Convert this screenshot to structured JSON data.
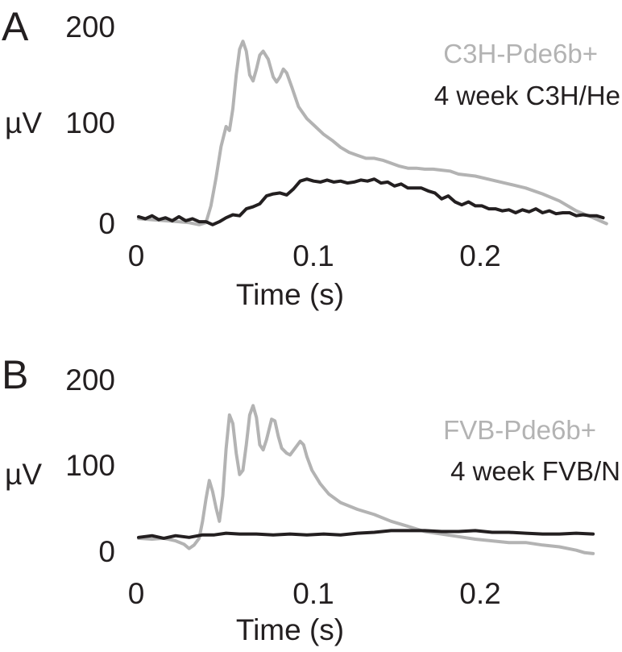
{
  "chart_data": [
    {
      "type": "line",
      "panel_label": "A",
      "ylabel": "µV",
      "xlabel": "Time (s)",
      "x_ticks": [
        "0",
        "0.1",
        "0.2"
      ],
      "y_ticks": [
        "0",
        "100",
        "200"
      ],
      "xlim": [
        0,
        0.28
      ],
      "ylim": [
        0,
        200
      ],
      "legend_position": "top-right",
      "grid": false,
      "series": [
        {
          "name": "C3H-Pde6b+",
          "color": "#b3b3b3",
          "points": [
            [
              0.0,
              7
            ],
            [
              0.008,
              6
            ],
            [
              0.016,
              5
            ],
            [
              0.024,
              4
            ],
            [
              0.03,
              3
            ],
            [
              0.036,
              1
            ],
            [
              0.04,
              3
            ],
            [
              0.043,
              20
            ],
            [
              0.046,
              48
            ],
            [
              0.049,
              80
            ],
            [
              0.052,
              100
            ],
            [
              0.054,
              96
            ],
            [
              0.056,
              118
            ],
            [
              0.058,
              152
            ],
            [
              0.06,
              178
            ],
            [
              0.062,
              186
            ],
            [
              0.064,
              176
            ],
            [
              0.066,
              152
            ],
            [
              0.068,
              146
            ],
            [
              0.07,
              158
            ],
            [
              0.072,
              172
            ],
            [
              0.074,
              176
            ],
            [
              0.077,
              168
            ],
            [
              0.08,
              150
            ],
            [
              0.082,
              145
            ],
            [
              0.084,
              150
            ],
            [
              0.086,
              158
            ],
            [
              0.088,
              154
            ],
            [
              0.091,
              140
            ],
            [
              0.095,
              120
            ],
            [
              0.1,
              108
            ],
            [
              0.105,
              100
            ],
            [
              0.11,
              92
            ],
            [
              0.115,
              86
            ],
            [
              0.12,
              79
            ],
            [
              0.125,
              74
            ],
            [
              0.13,
              71
            ],
            [
              0.135,
              68
            ],
            [
              0.14,
              68
            ],
            [
              0.145,
              66
            ],
            [
              0.15,
              63
            ],
            [
              0.155,
              60
            ],
            [
              0.16,
              58
            ],
            [
              0.165,
              58
            ],
            [
              0.17,
              57
            ],
            [
              0.175,
              57
            ],
            [
              0.18,
              56
            ],
            [
              0.185,
              55
            ],
            [
              0.19,
              52
            ],
            [
              0.2,
              50
            ],
            [
              0.21,
              46
            ],
            [
              0.22,
              42
            ],
            [
              0.23,
              38
            ],
            [
              0.24,
              32
            ],
            [
              0.25,
              25
            ],
            [
              0.26,
              15
            ],
            [
              0.27,
              8
            ],
            [
              0.278,
              2
            ]
          ]
        },
        {
          "name": "4 week C3H/He",
          "color": "#231f20",
          "points": [
            [
              0.0,
              9
            ],
            [
              0.004,
              7
            ],
            [
              0.008,
              10
            ],
            [
              0.012,
              6
            ],
            [
              0.016,
              8
            ],
            [
              0.02,
              5
            ],
            [
              0.024,
              9
            ],
            [
              0.028,
              5
            ],
            [
              0.032,
              7
            ],
            [
              0.036,
              4
            ],
            [
              0.04,
              4
            ],
            [
              0.044,
              1
            ],
            [
              0.048,
              4
            ],
            [
              0.052,
              8
            ],
            [
              0.056,
              11
            ],
            [
              0.06,
              10
            ],
            [
              0.064,
              17
            ],
            [
              0.068,
              19
            ],
            [
              0.072,
              22
            ],
            [
              0.076,
              30
            ],
            [
              0.08,
              32
            ],
            [
              0.084,
              33
            ],
            [
              0.088,
              31
            ],
            [
              0.092,
              37
            ],
            [
              0.096,
              45
            ],
            [
              0.1,
              47
            ],
            [
              0.104,
              45
            ],
            [
              0.108,
              44
            ],
            [
              0.112,
              46
            ],
            [
              0.116,
              44
            ],
            [
              0.12,
              45
            ],
            [
              0.124,
              43
            ],
            [
              0.128,
              44
            ],
            [
              0.132,
              46
            ],
            [
              0.136,
              45
            ],
            [
              0.14,
              47
            ],
            [
              0.144,
              43
            ],
            [
              0.148,
              44
            ],
            [
              0.152,
              40
            ],
            [
              0.156,
              42
            ],
            [
              0.16,
              38
            ],
            [
              0.164,
              38
            ],
            [
              0.168,
              38
            ],
            [
              0.172,
              35
            ],
            [
              0.176,
              33
            ],
            [
              0.18,
              27
            ],
            [
              0.184,
              30
            ],
            [
              0.188,
              24
            ],
            [
              0.192,
              21
            ],
            [
              0.196,
              24
            ],
            [
              0.2,
              20
            ],
            [
              0.204,
              20
            ],
            [
              0.208,
              17
            ],
            [
              0.212,
              17
            ],
            [
              0.216,
              15
            ],
            [
              0.22,
              16
            ],
            [
              0.224,
              13
            ],
            [
              0.228,
              16
            ],
            [
              0.232,
              14
            ],
            [
              0.236,
              17
            ],
            [
              0.24,
              13
            ],
            [
              0.244,
              15
            ],
            [
              0.248,
              12
            ],
            [
              0.252,
              13
            ],
            [
              0.256,
              13
            ],
            [
              0.26,
              10
            ],
            [
              0.264,
              11
            ],
            [
              0.268,
              10
            ],
            [
              0.272,
              10
            ],
            [
              0.276,
              8
            ]
          ]
        }
      ]
    },
    {
      "type": "line",
      "panel_label": "B",
      "ylabel": "µV",
      "xlabel": "Time (s)",
      "x_ticks": [
        "0",
        "0.1",
        "0.2"
      ],
      "y_ticks": [
        "0",
        "100",
        "200"
      ],
      "xlim": [
        0,
        0.28
      ],
      "ylim": [
        0,
        200
      ],
      "legend_position": "right",
      "grid": false,
      "series": [
        {
          "name": "FVB-Pde6b+",
          "color": "#b3b3b3",
          "points": [
            [
              0.0,
              20
            ],
            [
              0.008,
              19
            ],
            [
              0.015,
              20
            ],
            [
              0.022,
              17
            ],
            [
              0.027,
              13
            ],
            [
              0.03,
              8
            ],
            [
              0.033,
              12
            ],
            [
              0.036,
              20
            ],
            [
              0.038,
              40
            ],
            [
              0.04,
              66
            ],
            [
              0.042,
              88
            ],
            [
              0.044,
              75
            ],
            [
              0.046,
              56
            ],
            [
              0.048,
              40
            ],
            [
              0.05,
              70
            ],
            [
              0.052,
              125
            ],
            [
              0.054,
              165
            ],
            [
              0.056,
              155
            ],
            [
              0.058,
              120
            ],
            [
              0.06,
              95
            ],
            [
              0.062,
              100
            ],
            [
              0.064,
              130
            ],
            [
              0.066,
              165
            ],
            [
              0.068,
              176
            ],
            [
              0.07,
              162
            ],
            [
              0.072,
              130
            ],
            [
              0.074,
              124
            ],
            [
              0.076,
              136
            ],
            [
              0.079,
              160
            ],
            [
              0.081,
              158
            ],
            [
              0.083,
              140
            ],
            [
              0.085,
              126
            ],
            [
              0.088,
              120
            ],
            [
              0.09,
              118
            ],
            [
              0.093,
              126
            ],
            [
              0.096,
              134
            ],
            [
              0.098,
              130
            ],
            [
              0.1,
              116
            ],
            [
              0.103,
              100
            ],
            [
              0.108,
              84
            ],
            [
              0.113,
              72
            ],
            [
              0.12,
              62
            ],
            [
              0.13,
              54
            ],
            [
              0.14,
              48
            ],
            [
              0.15,
              40
            ],
            [
              0.16,
              34
            ],
            [
              0.17,
              28
            ],
            [
              0.18,
              25
            ],
            [
              0.19,
              22
            ],
            [
              0.2,
              19
            ],
            [
              0.21,
              17
            ],
            [
              0.22,
              15
            ],
            [
              0.23,
              15
            ],
            [
              0.24,
              12
            ],
            [
              0.25,
              10
            ],
            [
              0.26,
              6
            ],
            [
              0.265,
              3
            ],
            [
              0.27,
              2
            ]
          ]
        },
        {
          "name": "4 week FVB/N",
          "color": "#231f20",
          "points": [
            [
              0.0,
              21
            ],
            [
              0.008,
              23
            ],
            [
              0.015,
              20
            ],
            [
              0.022,
              23
            ],
            [
              0.03,
              21
            ],
            [
              0.038,
              24
            ],
            [
              0.045,
              24
            ],
            [
              0.052,
              26
            ],
            [
              0.06,
              25
            ],
            [
              0.07,
              25
            ],
            [
              0.08,
              24
            ],
            [
              0.09,
              25
            ],
            [
              0.1,
              24
            ],
            [
              0.11,
              25
            ],
            [
              0.12,
              24
            ],
            [
              0.13,
              26
            ],
            [
              0.14,
              27
            ],
            [
              0.15,
              29
            ],
            [
              0.16,
              29
            ],
            [
              0.17,
              29
            ],
            [
              0.18,
              28
            ],
            [
              0.19,
              28
            ],
            [
              0.2,
              29
            ],
            [
              0.21,
              27
            ],
            [
              0.22,
              27
            ],
            [
              0.23,
              26
            ],
            [
              0.24,
              25
            ],
            [
              0.25,
              25
            ],
            [
              0.26,
              26
            ],
            [
              0.27,
              25
            ]
          ]
        }
      ]
    }
  ]
}
